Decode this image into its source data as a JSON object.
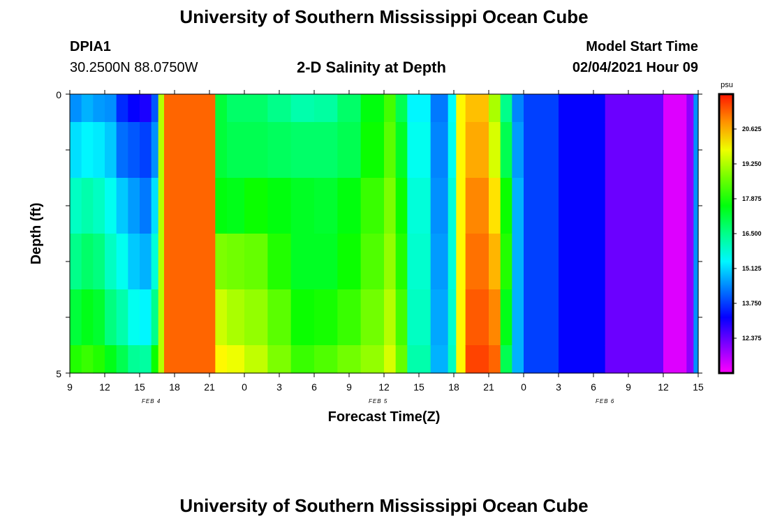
{
  "header": {
    "title": "University of Southern Mississippi Ocean Cube",
    "station_id": "DPIA1",
    "station_coords": "30.2500N 88.0750W",
    "chart_title": "2-D Salinity at Depth",
    "model_start_label": "Model Start Time",
    "model_start_value": "02/04/2021 Hour 09"
  },
  "footer": {
    "title": "University of Southern Mississippi Ocean Cube"
  },
  "chart_data": {
    "type": "heatmap",
    "title": "2-D Salinity at Depth",
    "xlabel": "Forecast Time(Z)",
    "ylabel": "Depth (ft)",
    "x_tick_labels": [
      "9",
      "12",
      "15",
      "18",
      "21",
      "0",
      "3",
      "6",
      "9",
      "12",
      "15",
      "18",
      "21",
      "0",
      "3",
      "6",
      "9",
      "12",
      "15"
    ],
    "x_tick_hours": [
      0,
      3,
      6,
      9,
      12,
      15,
      18,
      21,
      24,
      27,
      30,
      33,
      36,
      39,
      42,
      45,
      48,
      51,
      54
    ],
    "x_range_hours": [
      0,
      54
    ],
    "date_labels": [
      {
        "text": "FEB 4",
        "hour": 7
      },
      {
        "text": "FEB 5",
        "hour": 26.5
      },
      {
        "text": "FEB 6",
        "hour": 46
      }
    ],
    "y_tick_labels": [
      "0",
      "5"
    ],
    "y_range_ft": [
      0,
      5
    ],
    "colorbar": {
      "unit": "psu",
      "min": 11,
      "max": 22,
      "tick_values": [
        20.625,
        19.25,
        17.875,
        16.5,
        15.125,
        13.75,
        12.375
      ],
      "tick_labels": [
        "20.625",
        "19.250",
        "17.875",
        "16.500",
        "15.125",
        "13.750",
        "12.375"
      ]
    },
    "depth_bins_ft": [
      0,
      0.5,
      1.5,
      2.5,
      3.5,
      4.5,
      5
    ],
    "columns": [
      {
        "hour": 0,
        "salinity": [
          14.5,
          15.2,
          16.0,
          16.5,
          17.2,
          18.0
        ]
      },
      {
        "hour": 1,
        "salinity": [
          14.8,
          15.4,
          16.2,
          16.8,
          17.5,
          18.2
        ]
      },
      {
        "hour": 2,
        "salinity": [
          14.6,
          15.3,
          16.0,
          16.6,
          17.3,
          18.0
        ]
      },
      {
        "hour": 3,
        "salinity": [
          14.5,
          15.0,
          15.6,
          16.0,
          16.6,
          17.5
        ]
      },
      {
        "hour": 4,
        "salinity": [
          13.6,
          14.2,
          15.0,
          15.6,
          16.2,
          17.0
        ]
      },
      {
        "hour": 5,
        "salinity": [
          13.2,
          14.0,
          14.6,
          15.0,
          15.6,
          16.4
        ]
      },
      {
        "hour": 6,
        "salinity": [
          13.0,
          13.8,
          14.3,
          14.8,
          15.4,
          16.3
        ]
      },
      {
        "hour": 7,
        "salinity": [
          14.0,
          14.5,
          15.2,
          15.8,
          16.5,
          17.8
        ]
      },
      {
        "hour": 7.6,
        "salinity": [
          19.3,
          19.3,
          19.3,
          19.3,
          19.3,
          19.3
        ]
      },
      {
        "hour": 8.1,
        "salinity": [
          21.3,
          21.3,
          21.3,
          21.3,
          21.3,
          21.3
        ]
      },
      {
        "hour": 12.5,
        "salinity": [
          17.2,
          17.2,
          17.6,
          18.8,
          19.5,
          20.0
        ]
      },
      {
        "hour": 13.5,
        "salinity": [
          16.8,
          17.0,
          17.5,
          18.7,
          19.2,
          19.8
        ]
      },
      {
        "hour": 15,
        "salinity": [
          16.8,
          17.0,
          17.8,
          18.6,
          19.0,
          19.4
        ]
      },
      {
        "hour": 17,
        "salinity": [
          16.5,
          16.9,
          17.6,
          18.0,
          18.5,
          18.8
        ]
      },
      {
        "hour": 19,
        "salinity": [
          16.2,
          16.8,
          17.4,
          17.4,
          17.8,
          18.2
        ]
      },
      {
        "hour": 21,
        "salinity": [
          16.3,
          16.8,
          17.3,
          17.4,
          17.9,
          18.4
        ]
      },
      {
        "hour": 23,
        "salinity": [
          16.8,
          17.0,
          17.6,
          17.8,
          18.2,
          18.7
        ]
      },
      {
        "hour": 25,
        "salinity": [
          17.6,
          17.8,
          18.2,
          18.4,
          18.7,
          19.0
        ]
      },
      {
        "hour": 27,
        "salinity": [
          18.3,
          18.5,
          18.8,
          19.0,
          19.3,
          19.6
        ]
      },
      {
        "hour": 28,
        "salinity": [
          17.0,
          17.4,
          17.8,
          18.0,
          18.3,
          18.6
        ]
      },
      {
        "hour": 29,
        "salinity": [
          15.4,
          15.6,
          15.8,
          15.9,
          16.0,
          16.2
        ]
      },
      {
        "hour": 31,
        "salinity": [
          14.3,
          14.4,
          14.5,
          14.6,
          14.7,
          14.8
        ]
      },
      {
        "hour": 32.5,
        "salinity": [
          15.5,
          15.6,
          15.8,
          15.8,
          15.9,
          16.0
        ]
      },
      {
        "hour": 33.2,
        "salinity": [
          20.0,
          20.0,
          20.0,
          20.0,
          20.0,
          20.0
        ]
      },
      {
        "hour": 34,
        "salinity": [
          20.5,
          20.7,
          21.0,
          21.2,
          21.4,
          21.6
        ]
      },
      {
        "hour": 36,
        "salinity": [
          19.2,
          19.6,
          20.2,
          20.6,
          21.0,
          21.3
        ]
      },
      {
        "hour": 37,
        "salinity": [
          16.5,
          17.0,
          17.8,
          18.0,
          17.5,
          17.0
        ]
      },
      {
        "hour": 38,
        "salinity": [
          14.4,
          14.6,
          14.8,
          14.8,
          14.8,
          14.8
        ]
      },
      {
        "hour": 39,
        "salinity": [
          13.8,
          13.8,
          13.8,
          13.8,
          13.8,
          13.8
        ]
      },
      {
        "hour": 42,
        "salinity": [
          13.2,
          13.2,
          13.2,
          13.2,
          13.2,
          13.2
        ]
      },
      {
        "hour": 46,
        "salinity": [
          12.3,
          12.3,
          12.3,
          12.3,
          12.3,
          12.3
        ]
      },
      {
        "hour": 51,
        "salinity": [
          11.3,
          11.3,
          11.3,
          11.3,
          11.3,
          11.3
        ]
      },
      {
        "hour": 53,
        "salinity": [
          12.0,
          12.0,
          12.0,
          12.0,
          12.0,
          12.0
        ]
      },
      {
        "hour": 53.6,
        "salinity": [
          14.5,
          14.5,
          14.5,
          14.5,
          14.5,
          14.5
        ]
      }
    ]
  }
}
